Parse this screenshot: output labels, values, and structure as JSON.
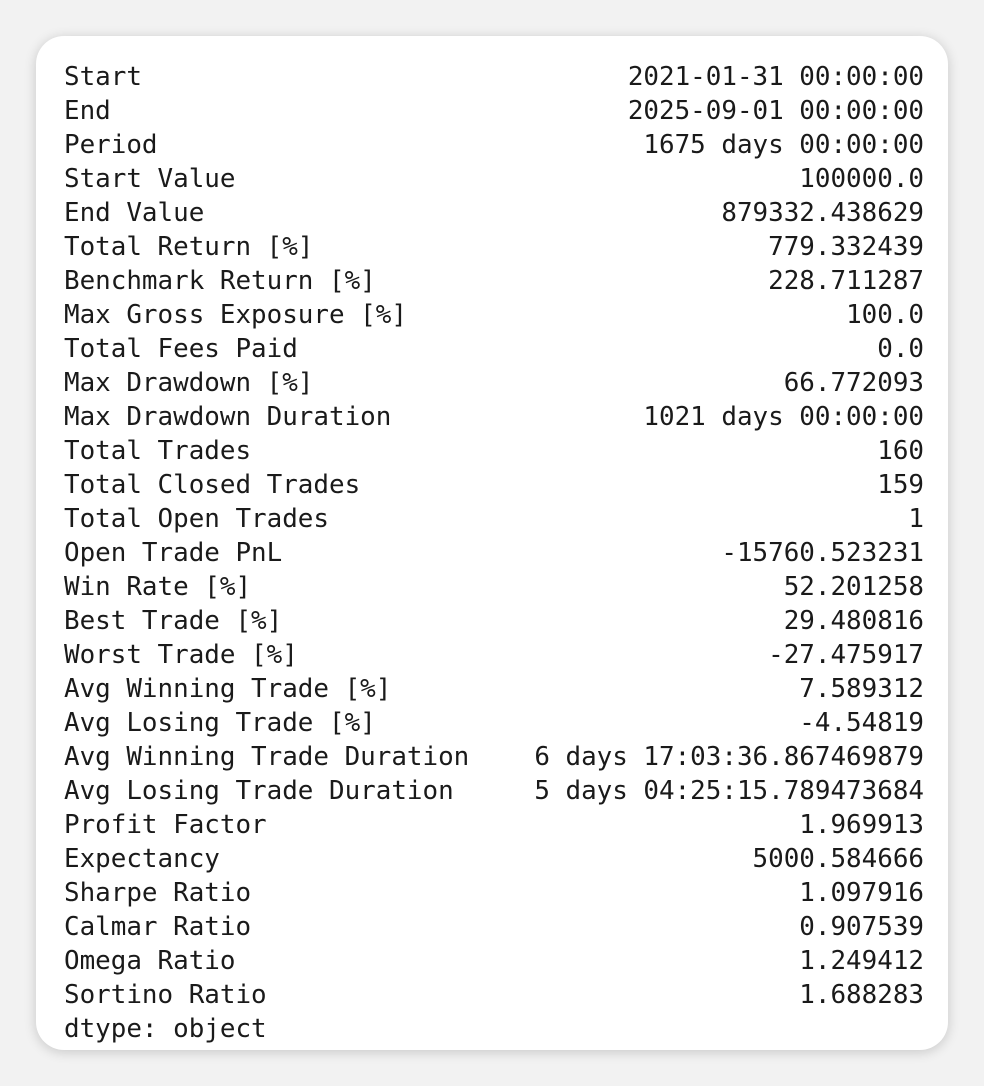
{
  "stats": [
    {
      "label": "Start",
      "value": "2021-01-31 00:00:00"
    },
    {
      "label": "End",
      "value": "2025-09-01 00:00:00"
    },
    {
      "label": "Period",
      "value": "1675 days 00:00:00"
    },
    {
      "label": "Start Value",
      "value": "100000.0"
    },
    {
      "label": "End Value",
      "value": "879332.438629"
    },
    {
      "label": "Total Return [%]",
      "value": "779.332439"
    },
    {
      "label": "Benchmark Return [%]",
      "value": "228.711287"
    },
    {
      "label": "Max Gross Exposure [%]",
      "value": "100.0"
    },
    {
      "label": "Total Fees Paid",
      "value": "0.0"
    },
    {
      "label": "Max Drawdown [%]",
      "value": "66.772093"
    },
    {
      "label": "Max Drawdown Duration",
      "value": "1021 days 00:00:00"
    },
    {
      "label": "Total Trades",
      "value": "160"
    },
    {
      "label": "Total Closed Trades",
      "value": "159"
    },
    {
      "label": "Total Open Trades",
      "value": "1"
    },
    {
      "label": "Open Trade PnL",
      "value": "-15760.523231"
    },
    {
      "label": "Win Rate [%]",
      "value": "52.201258"
    },
    {
      "label": "Best Trade [%]",
      "value": "29.480816"
    },
    {
      "label": "Worst Trade [%]",
      "value": "-27.475917"
    },
    {
      "label": "Avg Winning Trade [%]",
      "value": "7.589312"
    },
    {
      "label": "Avg Losing Trade [%]",
      "value": "-4.54819"
    },
    {
      "label": "Avg Winning Trade Duration",
      "value": "6 days 17:03:36.867469879"
    },
    {
      "label": "Avg Losing Trade Duration",
      "value": "5 days 04:25:15.789473684"
    },
    {
      "label": "Profit Factor",
      "value": "1.969913"
    },
    {
      "label": "Expectancy",
      "value": "5000.584666"
    },
    {
      "label": "Sharpe Ratio",
      "value": "1.097916"
    },
    {
      "label": "Calmar Ratio",
      "value": "0.907539"
    },
    {
      "label": "Omega Ratio",
      "value": "1.249412"
    },
    {
      "label": "Sortino Ratio",
      "value": "1.688283"
    }
  ],
  "dtype_line": "dtype: object"
}
